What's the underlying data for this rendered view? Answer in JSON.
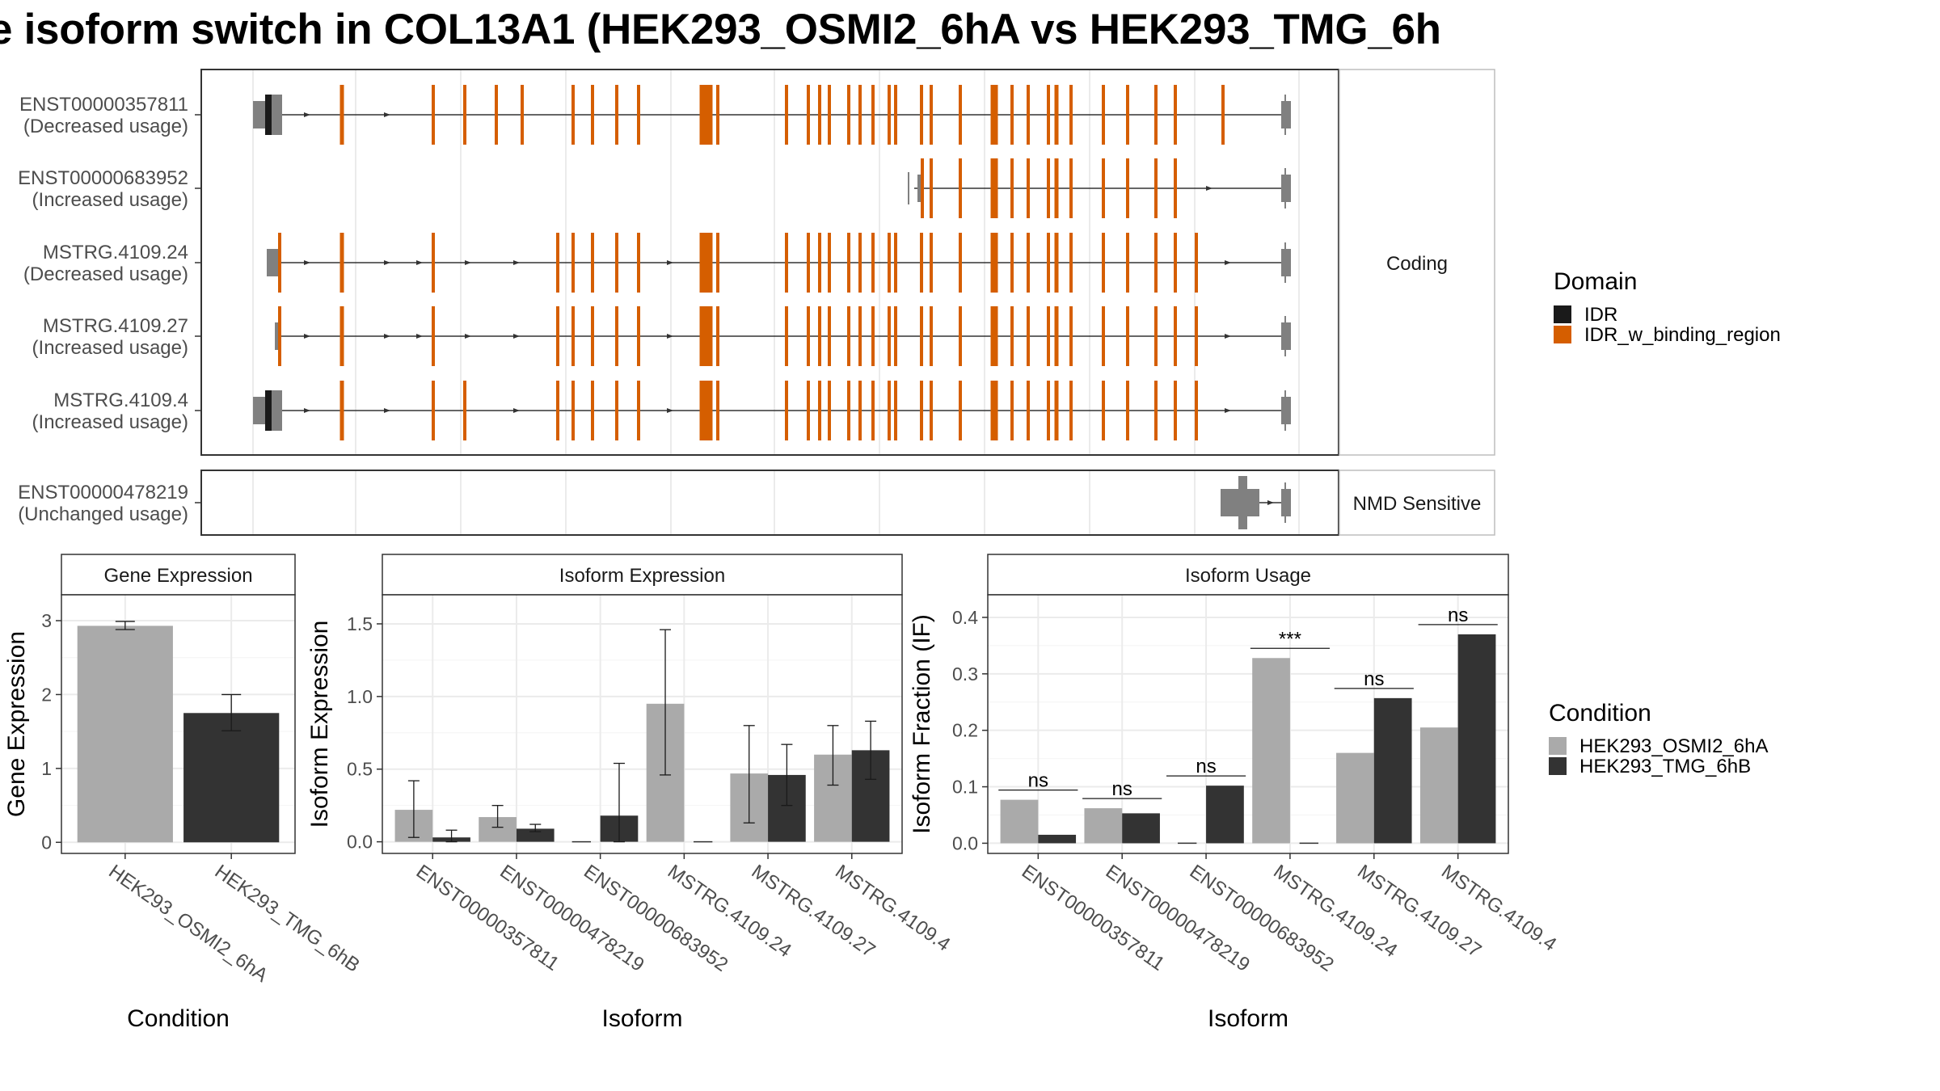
{
  "title": "e isoform switch in COL13A1 (HEK293_OSMI2_6hA vs HEK293_TMG_6h",
  "colors": {
    "idr": "#1a1a1a",
    "idr_binding": "#d55e00",
    "utr": "#808080",
    "cond_a": "#aaaaaa",
    "cond_b": "#333333",
    "grid": "#ebebeb",
    "strip": "#ffffff",
    "panel_border": "#333333"
  },
  "transcripts": {
    "coding_strip": "Coding",
    "nmd_strip": "NMD Sensitive",
    "rows": [
      {
        "id": "ENST00000357811",
        "usage": "(Decreased usage)",
        "group": "coding"
      },
      {
        "id": "ENST00000683952",
        "usage": "(Increased usage)",
        "group": "coding"
      },
      {
        "id": "MSTRG.4109.24",
        "usage": "(Decreased usage)",
        "group": "coding"
      },
      {
        "id": "MSTRG.4109.27",
        "usage": "(Increased usage)",
        "group": "coding"
      },
      {
        "id": "MSTRG.4109.4",
        "usage": "(Increased usage)",
        "group": "coding"
      },
      {
        "id": "ENST00000478219",
        "usage": "(Unchanged usage)",
        "group": "nmd"
      }
    ]
  },
  "legend_domain": {
    "title": "Domain",
    "items": [
      {
        "label": "IDR",
        "color": "#1a1a1a"
      },
      {
        "label": "IDR_w_binding_region",
        "color": "#d55e00"
      }
    ]
  },
  "legend_condition": {
    "title": "Condition",
    "items": [
      {
        "label": "HEK293_OSMI2_6hA",
        "color": "#aaaaaa"
      },
      {
        "label": "HEK293_TMG_6hB",
        "color": "#333333"
      }
    ]
  },
  "chart_data": [
    {
      "type": "bar",
      "title": "Gene Expression",
      "xlabel": "Condition",
      "ylabel": "Gene Expression",
      "categories": [
        "HEK293_OSMI2_6hA",
        "HEK293_TMG_6hB"
      ],
      "values": [
        2.93,
        1.75
      ],
      "error": [
        [
          2.88,
          2.99
        ],
        [
          1.51,
          2.0
        ]
      ],
      "colors": [
        "#aaaaaa",
        "#333333"
      ],
      "ylim": [
        -0.15,
        3.35
      ],
      "yticks": [
        0,
        1,
        2,
        3
      ],
      "grid": true
    },
    {
      "type": "bar",
      "title": "Isoform Expression",
      "xlabel": "Isoform",
      "ylabel": "Isoform Expression",
      "categories": [
        "ENST00000357811",
        "ENST00000478219",
        "ENST00000683952",
        "MSTRG.4109.24",
        "MSTRG.4109.27",
        "MSTRG.4109.4"
      ],
      "series": [
        {
          "name": "HEK293_OSMI2_6hA",
          "values": [
            0.22,
            0.17,
            0.0,
            0.95,
            0.47,
            0.6
          ],
          "error": [
            [
              0.03,
              0.42
            ],
            [
              0.1,
              0.25
            ],
            [
              0.0,
              0.0
            ],
            [
              0.46,
              1.46
            ],
            [
              0.13,
              0.8
            ],
            [
              0.39,
              0.8
            ]
          ]
        },
        {
          "name": "HEK293_TMG_6hB",
          "values": [
            0.03,
            0.09,
            0.18,
            0.0,
            0.46,
            0.63
          ],
          "error": [
            [
              0.0,
              0.08
            ],
            [
              0.07,
              0.12
            ],
            [
              0.0,
              0.54
            ],
            [
              0.0,
              0.0
            ],
            [
              0.25,
              0.67
            ],
            [
              0.43,
              0.83
            ]
          ]
        }
      ],
      "ylim": [
        -0.08,
        1.7
      ],
      "yticks": [
        0.0,
        0.5,
        1.0,
        1.5
      ],
      "grid": true
    },
    {
      "type": "bar",
      "title": "Isoform Usage",
      "xlabel": "Isoform",
      "ylabel": "Isoform Fraction (IF)",
      "categories": [
        "ENST00000357811",
        "ENST00000478219",
        "ENST00000683952",
        "MSTRG.4109.24",
        "MSTRG.4109.27",
        "MSTRG.4109.4"
      ],
      "series": [
        {
          "name": "HEK293_OSMI2_6hA",
          "values": [
            0.077,
            0.062,
            0.0,
            0.328,
            0.16,
            0.205
          ]
        },
        {
          "name": "HEK293_TMG_6hB",
          "values": [
            0.015,
            0.053,
            0.102,
            0.0,
            0.257,
            0.37
          ]
        }
      ],
      "significance": [
        "ns",
        "ns",
        "ns",
        "***",
        "ns",
        "ns"
      ],
      "ylim": [
        -0.018,
        0.44
      ],
      "yticks": [
        0.0,
        0.1,
        0.2,
        0.3,
        0.4
      ],
      "grid": true
    }
  ]
}
